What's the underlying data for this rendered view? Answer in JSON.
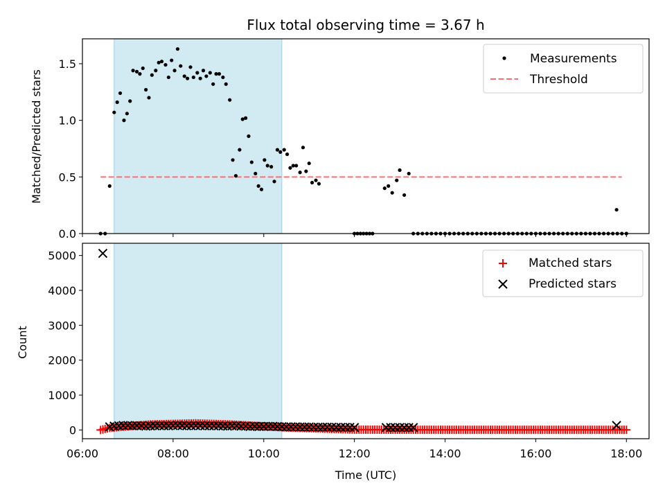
{
  "chart_data": [
    {
      "type": "scatter",
      "title": "Flux total observing time = 3.67 h",
      "ylabel": "Matched/Predicted stars",
      "xlabel": "",
      "xlim": [
        "06:00",
        "18:30"
      ],
      "ylim": [
        0,
        1.72
      ],
      "yticks": [
        0,
        0.5,
        1.0,
        1.5
      ],
      "ytick_labels": [
        "0.0",
        "0.5",
        "1.0",
        "1.5"
      ],
      "xticks": [
        "06:00",
        "08:00",
        "10:00",
        "12:00",
        "14:00",
        "16:00",
        "18:00"
      ],
      "shaded_span": [
        "06:42",
        "10:24"
      ],
      "legend_position": "upper right",
      "series": [
        {
          "name": "Measurements",
          "marker": "dot",
          "color": "#000000",
          "points": [
            [
              "06:24",
              0
            ],
            [
              "06:30",
              0
            ],
            [
              "06:36",
              0.42
            ],
            [
              "06:42",
              1.07
            ],
            [
              "06:46",
              1.16
            ],
            [
              "06:50",
              1.24
            ],
            [
              "06:55",
              1.0
            ],
            [
              "06:59",
              1.06
            ],
            [
              "07:03",
              1.17
            ],
            [
              "07:07",
              1.44
            ],
            [
              "07:12",
              1.43
            ],
            [
              "07:16",
              1.41
            ],
            [
              "07:20",
              1.46
            ],
            [
              "07:24",
              1.27
            ],
            [
              "07:28",
              1.2
            ],
            [
              "07:32",
              1.4
            ],
            [
              "07:37",
              1.44
            ],
            [
              "07:41",
              1.51
            ],
            [
              "07:45",
              1.52
            ],
            [
              "07:50",
              1.49
            ],
            [
              "07:54",
              1.38
            ],
            [
              "07:58",
              1.53
            ],
            [
              "08:02",
              1.44
            ],
            [
              "08:06",
              1.63
            ],
            [
              "08:10",
              1.48
            ],
            [
              "08:15",
              1.39
            ],
            [
              "08:19",
              1.37
            ],
            [
              "08:23",
              1.47
            ],
            [
              "08:27",
              1.38
            ],
            [
              "08:32",
              1.42
            ],
            [
              "08:36",
              1.37
            ],
            [
              "08:40",
              1.44
            ],
            [
              "08:44",
              1.39
            ],
            [
              "08:49",
              1.42
            ],
            [
              "08:53",
              1.32
            ],
            [
              "08:57",
              1.41
            ],
            [
              "09:01",
              1.41
            ],
            [
              "09:06",
              1.38
            ],
            [
              "09:10",
              1.32
            ],
            [
              "09:15",
              1.18
            ],
            [
              "09:19",
              0.65
            ],
            [
              "09:23",
              0.51
            ],
            [
              "09:28",
              0.74
            ],
            [
              "09:32",
              1.01
            ],
            [
              "09:36",
              1.02
            ],
            [
              "09:40",
              0.86
            ],
            [
              "09:44",
              0.63
            ],
            [
              "09:49",
              0.53
            ],
            [
              "09:53",
              0.42
            ],
            [
              "09:57",
              0.39
            ],
            [
              "10:01",
              0.65
            ],
            [
              "10:05",
              0.6
            ],
            [
              "10:10",
              0.59
            ],
            [
              "10:14",
              0.46
            ],
            [
              "10:18",
              0.74
            ],
            [
              "10:22",
              0.72
            ],
            [
              "10:27",
              0.74
            ],
            [
              "10:31",
              0.7
            ],
            [
              "10:35",
              0.58
            ],
            [
              "10:39",
              0.6
            ],
            [
              "10:43",
              0.6
            ],
            [
              "10:48",
              0.54
            ],
            [
              "10:52",
              0.76
            ],
            [
              "10:56",
              0.55
            ],
            [
              "11:00",
              0.62
            ],
            [
              "11:04",
              0.45
            ],
            [
              "11:09",
              0.47
            ],
            [
              "11:13",
              0.44
            ],
            [
              "12:00",
              0
            ],
            [
              "12:04",
              0
            ],
            [
              "12:08",
              0
            ],
            [
              "12:12",
              0
            ],
            [
              "12:16",
              0
            ],
            [
              "12:20",
              0
            ],
            [
              "12:24",
              0
            ],
            [
              "12:40",
              0.4
            ],
            [
              "12:45",
              0.42
            ],
            [
              "12:50",
              0.36
            ],
            [
              "12:56",
              0.47
            ],
            [
              "13:00",
              0.56
            ],
            [
              "13:06",
              0.34
            ],
            [
              "13:12",
              0.53
            ],
            [
              "13:18",
              0
            ],
            [
              "13:24",
              0
            ],
            [
              "13:30",
              0
            ],
            [
              "13:36",
              0
            ],
            [
              "13:42",
              0
            ],
            [
              "13:48",
              0
            ],
            [
              "13:54",
              0
            ],
            [
              "14:00",
              0
            ],
            [
              "14:06",
              0
            ],
            [
              "14:12",
              0
            ],
            [
              "14:18",
              0
            ],
            [
              "14:24",
              0
            ],
            [
              "14:30",
              0
            ],
            [
              "14:36",
              0
            ],
            [
              "14:42",
              0
            ],
            [
              "14:48",
              0
            ],
            [
              "14:54",
              0
            ],
            [
              "15:00",
              0
            ],
            [
              "15:06",
              0
            ],
            [
              "15:12",
              0
            ],
            [
              "15:18",
              0
            ],
            [
              "15:24",
              0
            ],
            [
              "15:30",
              0
            ],
            [
              "15:36",
              0
            ],
            [
              "15:42",
              0
            ],
            [
              "15:48",
              0
            ],
            [
              "15:54",
              0
            ],
            [
              "16:00",
              0
            ],
            [
              "16:06",
              0
            ],
            [
              "16:12",
              0
            ],
            [
              "16:18",
              0
            ],
            [
              "16:24",
              0
            ],
            [
              "16:30",
              0
            ],
            [
              "16:36",
              0
            ],
            [
              "16:42",
              0
            ],
            [
              "16:48",
              0
            ],
            [
              "16:54",
              0
            ],
            [
              "17:00",
              0
            ],
            [
              "17:06",
              0
            ],
            [
              "17:12",
              0
            ],
            [
              "17:18",
              0
            ],
            [
              "17:24",
              0
            ],
            [
              "17:30",
              0
            ],
            [
              "17:36",
              0
            ],
            [
              "17:42",
              0
            ],
            [
              "17:48",
              0
            ],
            [
              "17:54",
              0
            ],
            [
              "18:00",
              0
            ],
            [
              "17:47",
              0.21
            ]
          ]
        },
        {
          "name": "Threshold",
          "marker": "dashed-line",
          "color": "#ff6e6e",
          "points": [
            [
              "06:24",
              0.5
            ],
            [
              "17:54",
              0.5
            ]
          ]
        }
      ]
    },
    {
      "type": "scatter",
      "title": "",
      "ylabel": "Count",
      "xlabel": "Time (UTC)",
      "xlim": [
        "06:00",
        "18:30"
      ],
      "ylim": [
        -250,
        5350
      ],
      "yticks": [
        0,
        1000,
        2000,
        3000,
        4000,
        5000
      ],
      "ytick_labels": [
        "0",
        "1000",
        "2000",
        "3000",
        "4000",
        "5000"
      ],
      "xticks": [
        "06:00",
        "08:00",
        "10:00",
        "12:00",
        "14:00",
        "16:00",
        "18:00"
      ],
      "xtick_labels": [
        "06:00",
        "08:00",
        "10:00",
        "12:00",
        "14:00",
        "16:00",
        "18:00"
      ],
      "shaded_span": [
        "06:42",
        "10:24"
      ],
      "legend_position": "upper right",
      "series": [
        {
          "name": "Matched stars",
          "marker": "plus",
          "color": "#ff0000",
          "time_range": [
            "06:24",
            "18:00"
          ],
          "interval_minutes": 3,
          "typical_value": 100,
          "points": [
            [
              "06:24",
              0
            ],
            [
              "06:36",
              60
            ],
            [
              "07:30",
              160
            ],
            [
              "08:30",
              190
            ],
            [
              "09:15",
              160
            ],
            [
              "10:30",
              70
            ],
            [
              "12:00",
              10
            ],
            [
              "14:00",
              5
            ],
            [
              "16:00",
              5
            ],
            [
              "18:00",
              5
            ]
          ]
        },
        {
          "name": "Predicted stars",
          "marker": "x",
          "color": "#000000",
          "points": [
            [
              "06:27",
              5060
            ],
            [
              "06:36",
              90
            ],
            [
              "06:42",
              110
            ],
            [
              "06:48",
              120
            ],
            [
              "06:54",
              130
            ],
            [
              "07:00",
              130
            ],
            [
              "07:06",
              120
            ],
            [
              "07:12",
              125
            ],
            [
              "07:18",
              120
            ],
            [
              "07:24",
              110
            ],
            [
              "07:30",
              115
            ],
            [
              "07:36",
              120
            ],
            [
              "07:42",
              125
            ],
            [
              "07:48",
              120
            ],
            [
              "07:54",
              120
            ],
            [
              "08:00",
              125
            ],
            [
              "08:06",
              130
            ],
            [
              "08:12",
              125
            ],
            [
              "08:18",
              120
            ],
            [
              "08:24",
              120
            ],
            [
              "08:30",
              125
            ],
            [
              "08:36",
              125
            ],
            [
              "08:42",
              120
            ],
            [
              "08:48",
              120
            ],
            [
              "08:54",
              120
            ],
            [
              "09:00",
              120
            ],
            [
              "09:06",
              115
            ],
            [
              "09:12",
              110
            ],
            [
              "09:18",
              120
            ],
            [
              "09:24",
              120
            ],
            [
              "09:30",
              110
            ],
            [
              "09:36",
              110
            ],
            [
              "09:42",
              100
            ],
            [
              "09:48",
              105
            ],
            [
              "09:54",
              100
            ],
            [
              "10:00",
              100
            ],
            [
              "10:06",
              105
            ],
            [
              "10:12",
              105
            ],
            [
              "10:18",
              100
            ],
            [
              "10:24",
              95
            ],
            [
              "10:30",
              90
            ],
            [
              "10:36",
              90
            ],
            [
              "10:42",
              90
            ],
            [
              "10:48",
              85
            ],
            [
              "10:54",
              85
            ],
            [
              "11:00",
              85
            ],
            [
              "11:06",
              80
            ],
            [
              "11:12",
              80
            ],
            [
              "11:18",
              80
            ],
            [
              "11:24",
              80
            ],
            [
              "11:30",
              80
            ],
            [
              "11:36",
              75
            ],
            [
              "11:42",
              75
            ],
            [
              "11:48",
              75
            ],
            [
              "11:54",
              75
            ],
            [
              "12:00",
              70
            ],
            [
              "12:42",
              70
            ],
            [
              "12:48",
              70
            ],
            [
              "12:54",
              70
            ],
            [
              "13:00",
              70
            ],
            [
              "13:06",
              70
            ],
            [
              "13:12",
              70
            ],
            [
              "13:18",
              70
            ],
            [
              "17:47",
              130
            ]
          ]
        }
      ]
    }
  ]
}
